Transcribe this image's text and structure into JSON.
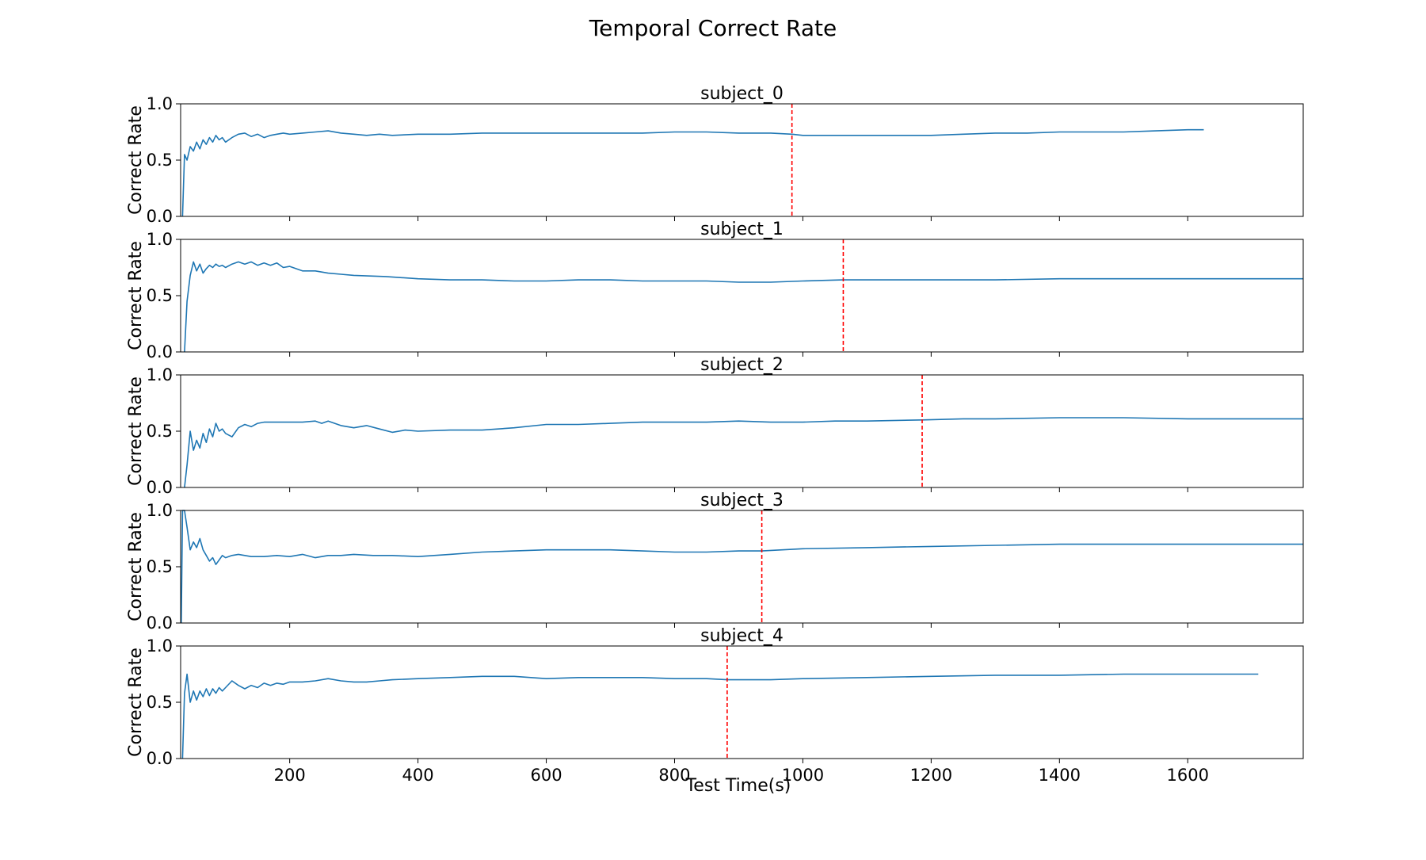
{
  "figure": {
    "title": "Temporal Correct Rate",
    "xlabel": "Test Time(s)"
  },
  "style": {
    "line_color": "#1f77b4",
    "marker_color": "#ff0000",
    "axes_color": "#000000"
  },
  "chart_data": [
    {
      "type": "line",
      "title": "subject_0",
      "ylabel": "Correct Rate",
      "xlim": [
        30,
        1780
      ],
      "ylim": [
        0.0,
        1.0
      ],
      "xticks": [
        200,
        400,
        600,
        800,
        1000,
        1200,
        1400,
        1600
      ],
      "show_xtick_labels": false,
      "yticks": [
        0.0,
        0.5,
        1.0
      ],
      "grid": false,
      "vline_x": 983,
      "series": [
        {
          "x": [
            33,
            36,
            40,
            45,
            50,
            55,
            60,
            65,
            70,
            75,
            80,
            85,
            90,
            95,
            100,
            110,
            120,
            130,
            140,
            150,
            160,
            170,
            180,
            190,
            200,
            220,
            240,
            260,
            280,
            300,
            320,
            340,
            360,
            400,
            450,
            500,
            550,
            600,
            650,
            700,
            750,
            800,
            850,
            900,
            950,
            983,
            1000,
            1050,
            1100,
            1150,
            1200,
            1250,
            1300,
            1350,
            1400,
            1450,
            1500,
            1550,
            1600,
            1625
          ],
          "y": [
            0.0,
            0.55,
            0.5,
            0.62,
            0.58,
            0.66,
            0.6,
            0.68,
            0.64,
            0.7,
            0.66,
            0.72,
            0.68,
            0.7,
            0.66,
            0.7,
            0.73,
            0.74,
            0.71,
            0.73,
            0.7,
            0.72,
            0.73,
            0.74,
            0.73,
            0.74,
            0.75,
            0.76,
            0.74,
            0.73,
            0.72,
            0.73,
            0.72,
            0.73,
            0.73,
            0.74,
            0.74,
            0.74,
            0.74,
            0.74,
            0.74,
            0.75,
            0.75,
            0.74,
            0.74,
            0.73,
            0.72,
            0.72,
            0.72,
            0.72,
            0.72,
            0.73,
            0.74,
            0.74,
            0.75,
            0.75,
            0.75,
            0.76,
            0.77,
            0.77
          ]
        }
      ]
    },
    {
      "type": "line",
      "title": "subject_1",
      "ylabel": "Correct Rate",
      "xlim": [
        30,
        1780
      ],
      "ylim": [
        0.0,
        1.0
      ],
      "xticks": [
        200,
        400,
        600,
        800,
        1000,
        1200,
        1400,
        1600
      ],
      "show_xtick_labels": false,
      "yticks": [
        0.0,
        0.5,
        1.0
      ],
      "grid": false,
      "vline_x": 1063,
      "series": [
        {
          "x": [
            36,
            40,
            45,
            50,
            55,
            60,
            65,
            70,
            75,
            80,
            85,
            90,
            95,
            100,
            110,
            120,
            130,
            140,
            150,
            160,
            170,
            180,
            190,
            200,
            220,
            240,
            260,
            280,
            300,
            350,
            400,
            450,
            500,
            550,
            600,
            650,
            700,
            750,
            800,
            850,
            900,
            950,
            1000,
            1063,
            1100,
            1200,
            1300,
            1400,
            1500,
            1600,
            1700,
            1780
          ],
          "y": [
            0.0,
            0.45,
            0.68,
            0.8,
            0.72,
            0.78,
            0.7,
            0.74,
            0.77,
            0.75,
            0.78,
            0.76,
            0.77,
            0.75,
            0.78,
            0.8,
            0.78,
            0.8,
            0.77,
            0.79,
            0.77,
            0.79,
            0.75,
            0.76,
            0.72,
            0.72,
            0.7,
            0.69,
            0.68,
            0.67,
            0.65,
            0.64,
            0.64,
            0.63,
            0.63,
            0.64,
            0.64,
            0.63,
            0.63,
            0.63,
            0.62,
            0.62,
            0.63,
            0.64,
            0.64,
            0.64,
            0.64,
            0.65,
            0.65,
            0.65,
            0.65,
            0.65
          ]
        }
      ]
    },
    {
      "type": "line",
      "title": "subject_2",
      "ylabel": "Correct Rate",
      "xlim": [
        30,
        1780
      ],
      "ylim": [
        0.0,
        1.0
      ],
      "xticks": [
        200,
        400,
        600,
        800,
        1000,
        1200,
        1400,
        1600
      ],
      "show_xtick_labels": false,
      "yticks": [
        0.0,
        0.5,
        1.0
      ],
      "grid": false,
      "vline_x": 1186,
      "series": [
        {
          "x": [
            36,
            40,
            45,
            50,
            55,
            60,
            65,
            70,
            75,
            80,
            85,
            90,
            95,
            100,
            110,
            120,
            130,
            140,
            150,
            160,
            180,
            200,
            220,
            240,
            250,
            260,
            280,
            300,
            320,
            340,
            360,
            380,
            400,
            450,
            500,
            550,
            600,
            650,
            700,
            750,
            800,
            850,
            900,
            950,
            1000,
            1050,
            1100,
            1186,
            1250,
            1300,
            1400,
            1500,
            1600,
            1700,
            1780
          ],
          "y": [
            0.0,
            0.2,
            0.5,
            0.33,
            0.42,
            0.35,
            0.48,
            0.4,
            0.52,
            0.45,
            0.57,
            0.5,
            0.52,
            0.48,
            0.45,
            0.53,
            0.56,
            0.54,
            0.57,
            0.58,
            0.58,
            0.58,
            0.58,
            0.59,
            0.57,
            0.59,
            0.55,
            0.53,
            0.55,
            0.52,
            0.49,
            0.51,
            0.5,
            0.51,
            0.51,
            0.53,
            0.56,
            0.56,
            0.57,
            0.58,
            0.58,
            0.58,
            0.59,
            0.58,
            0.58,
            0.59,
            0.59,
            0.6,
            0.61,
            0.61,
            0.62,
            0.62,
            0.61,
            0.61,
            0.61
          ]
        }
      ]
    },
    {
      "type": "line",
      "title": "subject_3",
      "ylabel": "Correct Rate",
      "xlim": [
        30,
        1780
      ],
      "ylim": [
        0.0,
        1.0
      ],
      "xticks": [
        200,
        400,
        600,
        800,
        1000,
        1200,
        1400,
        1600
      ],
      "show_xtick_labels": false,
      "yticks": [
        0.0,
        0.5,
        1.0
      ],
      "grid": false,
      "vline_x": 936,
      "series": [
        {
          "x": [
            31,
            33,
            36,
            40,
            45,
            50,
            55,
            60,
            65,
            70,
            75,
            80,
            85,
            90,
            95,
            100,
            110,
            120,
            130,
            140,
            160,
            180,
            200,
            220,
            240,
            260,
            280,
            300,
            330,
            360,
            400,
            450,
            500,
            550,
            600,
            650,
            700,
            750,
            800,
            850,
            900,
            936,
            1000,
            1100,
            1200,
            1300,
            1400,
            1500,
            1600,
            1700,
            1780
          ],
          "y": [
            0.0,
            1.0,
            1.0,
            0.85,
            0.65,
            0.72,
            0.67,
            0.75,
            0.65,
            0.6,
            0.55,
            0.58,
            0.52,
            0.56,
            0.6,
            0.58,
            0.6,
            0.61,
            0.6,
            0.59,
            0.59,
            0.6,
            0.59,
            0.61,
            0.58,
            0.6,
            0.6,
            0.61,
            0.6,
            0.6,
            0.59,
            0.61,
            0.63,
            0.64,
            0.65,
            0.65,
            0.65,
            0.64,
            0.63,
            0.63,
            0.64,
            0.64,
            0.66,
            0.67,
            0.68,
            0.69,
            0.7,
            0.7,
            0.7,
            0.7,
            0.7
          ]
        }
      ]
    },
    {
      "type": "line",
      "title": "subject_4",
      "ylabel": "Correct Rate",
      "xlim": [
        30,
        1780
      ],
      "ylim": [
        0.0,
        1.0
      ],
      "xticks": [
        200,
        400,
        600,
        800,
        1000,
        1200,
        1400,
        1600
      ],
      "show_xtick_labels": true,
      "yticks": [
        0.0,
        0.5,
        1.0
      ],
      "grid": false,
      "vline_x": 882,
      "series": [
        {
          "x": [
            33,
            36,
            40,
            45,
            50,
            55,
            60,
            65,
            70,
            75,
            80,
            85,
            90,
            95,
            100,
            110,
            120,
            130,
            140,
            150,
            160,
            170,
            180,
            190,
            200,
            220,
            240,
            260,
            280,
            300,
            320,
            340,
            360,
            400,
            450,
            500,
            550,
            600,
            650,
            700,
            750,
            800,
            850,
            882,
            900,
            950,
            1000,
            1100,
            1200,
            1300,
            1400,
            1500,
            1600,
            1700,
            1710
          ],
          "y": [
            0.0,
            0.58,
            0.75,
            0.5,
            0.6,
            0.52,
            0.6,
            0.55,
            0.62,
            0.56,
            0.62,
            0.58,
            0.63,
            0.6,
            0.63,
            0.69,
            0.65,
            0.62,
            0.65,
            0.63,
            0.67,
            0.65,
            0.67,
            0.66,
            0.68,
            0.68,
            0.69,
            0.71,
            0.69,
            0.68,
            0.68,
            0.69,
            0.7,
            0.71,
            0.72,
            0.73,
            0.73,
            0.71,
            0.72,
            0.72,
            0.72,
            0.71,
            0.71,
            0.7,
            0.7,
            0.7,
            0.71,
            0.72,
            0.73,
            0.74,
            0.74,
            0.75,
            0.75,
            0.75,
            0.75
          ]
        }
      ]
    }
  ]
}
